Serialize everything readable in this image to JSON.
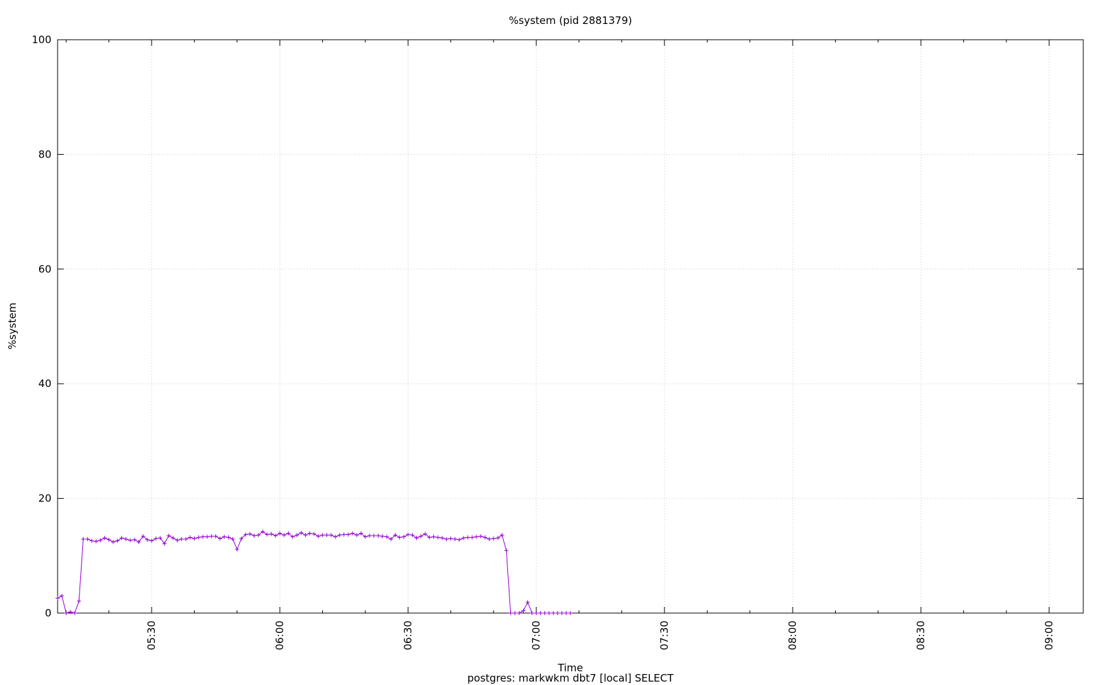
{
  "chart_data": {
    "type": "line",
    "title": "%system (pid 2881379)",
    "xlabel": "Time",
    "ylabel": "%system",
    "subtitle": "postgres: markwkm dbt7 [local] SELECT",
    "xlim": [
      "05:08",
      "09:08"
    ],
    "ylim": [
      0,
      100
    ],
    "yticks": [
      0,
      20,
      40,
      60,
      80,
      100
    ],
    "xticks_major": [
      "05:30",
      "06:00",
      "06:30",
      "07:00",
      "07:30",
      "08:00",
      "08:30",
      "09:00"
    ],
    "grid": true,
    "color": "#9400d3",
    "x_interval_minutes": 1,
    "x_start": "05:08",
    "values": [
      2.6,
      3.0,
      0,
      0.2,
      0,
      2.1,
      12.9,
      12.9,
      12.6,
      12.5,
      12.7,
      13.1,
      12.8,
      12.4,
      12.6,
      13.1,
      12.9,
      12.7,
      12.8,
      12.4,
      13.4,
      12.8,
      12.6,
      13.0,
      13.1,
      12.1,
      13.5,
      13.1,
      12.7,
      12.9,
      12.9,
      13.2,
      13.0,
      13.2,
      13.3,
      13.3,
      13.4,
      13.4,
      13.0,
      13.3,
      13.2,
      12.9,
      11.1,
      13.0,
      13.7,
      13.8,
      13.5,
      13.6,
      14.2,
      13.7,
      13.8,
      13.5,
      13.9,
      13.6,
      13.9,
      13.3,
      13.6,
      14.0,
      13.6,
      13.9,
      13.8,
      13.4,
      13.6,
      13.6,
      13.6,
      13.3,
      13.6,
      13.7,
      13.7,
      13.9,
      13.6,
      13.9,
      13.3,
      13.5,
      13.5,
      13.5,
      13.4,
      13.3,
      12.9,
      13.6,
      13.2,
      13.3,
      13.7,
      13.6,
      13.1,
      13.4,
      13.8,
      13.2,
      13.3,
      13.2,
      13.1,
      12.9,
      13.0,
      12.9,
      12.8,
      13.1,
      13.2,
      13.2,
      13.3,
      13.4,
      13.2,
      12.9,
      13.0,
      13.1,
      13.6,
      10.9,
      0,
      0,
      0,
      0.4,
      1.9,
      0,
      0,
      0,
      0,
      0,
      0,
      0,
      0,
      0,
      0
    ]
  }
}
